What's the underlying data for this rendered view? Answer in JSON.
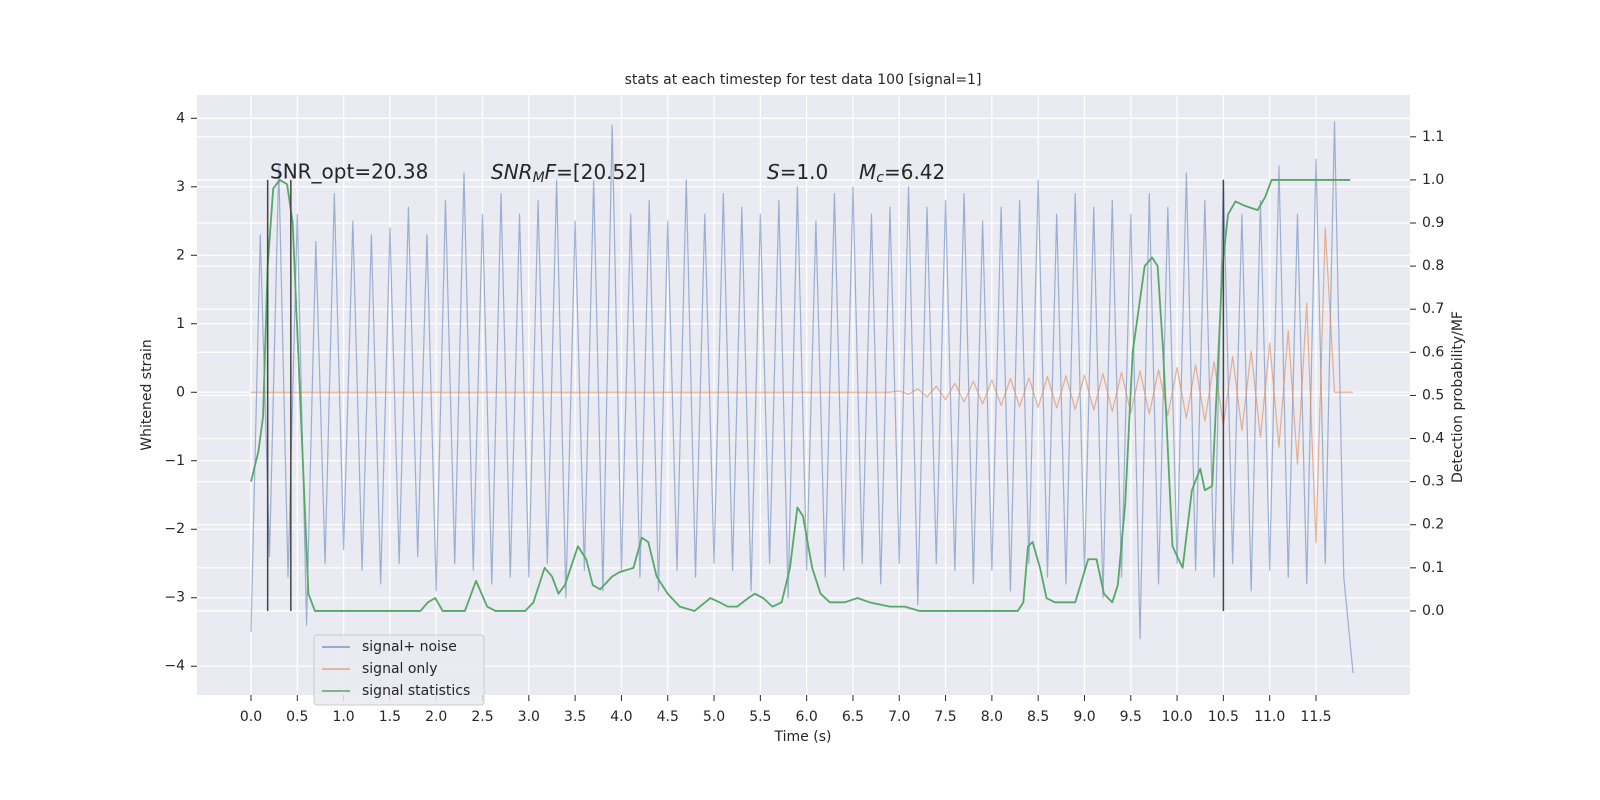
{
  "chart_data": {
    "type": "line",
    "title": "stats at each timestep for test data 100 [signal=1]",
    "xlabel": "Time (s)",
    "ylabel": "Whitened strain",
    "y2label": "Detection probability/MF",
    "annotations": [
      [
        "SNR_opt=20.38"
      ],
      [
        "SNR",
        "M",
        "F",
        "=[20.52]"
      ],
      [
        "S",
        "=1.0"
      ],
      [
        "M",
        "c",
        "=6.42"
      ]
    ],
    "xlim": [
      -0.583,
      12.515
    ],
    "ylim": [
      -4.42,
      4.34
    ],
    "y2lim": [
      -0.195,
      1.197
    ],
    "xticks": [
      {
        "value": 0,
        "label": "0.0"
      },
      0.5,
      {
        "value": 1,
        "label": "1.0"
      },
      1.5,
      {
        "value": 2,
        "label": "2.0"
      },
      2.5,
      {
        "value": 3,
        "label": "3.0"
      },
      3.5,
      {
        "value": 4,
        "label": "4.0"
      },
      4.5,
      {
        "value": 5,
        "label": "5.0"
      },
      5.5,
      {
        "value": 6,
        "label": "6.0"
      },
      6.5,
      {
        "value": 7,
        "label": "7.0"
      },
      7.5,
      {
        "value": 8,
        "label": "8.0"
      },
      8.5,
      {
        "value": 9,
        "label": "9.0"
      },
      9.5,
      {
        "value": 10,
        "label": "10.0"
      },
      10.5,
      {
        "value": 11,
        "label": "11.0"
      },
      11.5
    ],
    "yticks": [
      {
        "value": -4,
        "label": "−4"
      },
      {
        "value": -3,
        "label": "−3"
      },
      {
        "value": -2,
        "label": "−2"
      },
      {
        "value": -1,
        "label": "−1"
      },
      0,
      1,
      2,
      3,
      4
    ],
    "y2ticks": [
      {
        "value": 0,
        "label": "0.0"
      },
      0.1,
      0.2,
      0.3,
      0.4,
      0.5,
      0.6,
      0.7,
      0.8,
      0.9,
      {
        "value": 1,
        "label": "1.0"
      },
      1.1
    ],
    "grid": true,
    "legend": "lower left",
    "series": [
      {
        "name": "signal+ noise",
        "color": "#4c72b0",
        "x": [
          0,
          0.1,
          0.2,
          0.3,
          0.4,
          0.5,
          0.6,
          0.7,
          0.8,
          0.9,
          1,
          1.1,
          1.2,
          1.3,
          1.4,
          1.5,
          1.6,
          1.7,
          1.8,
          1.9,
          2,
          2.1,
          2.2,
          2.3,
          2.4,
          2.5,
          2.6,
          2.7,
          2.8,
          2.9,
          3,
          3.1,
          3.2,
          3.3,
          3.4,
          3.5,
          3.6,
          3.7,
          3.8,
          3.9,
          4,
          4.1,
          4.2,
          4.3,
          4.4,
          4.5,
          4.6,
          4.7,
          4.8,
          4.9,
          5,
          5.1,
          5.2,
          5.3,
          5.4,
          5.5,
          5.6,
          5.7,
          5.8,
          5.9,
          6,
          6.1,
          6.2,
          6.3,
          6.4,
          6.5,
          6.6,
          6.7,
          6.8,
          6.9,
          7,
          7.1,
          7.2,
          7.3,
          7.4,
          7.5,
          7.6,
          7.7,
          7.8,
          7.9,
          8,
          8.1,
          8.2,
          8.3,
          8.4,
          8.5,
          8.6,
          8.7,
          8.8,
          8.9,
          9,
          9.1,
          9.2,
          9.3,
          9.4,
          9.5,
          9.6,
          9.7,
          9.8,
          9.9,
          10,
          10.1,
          10.2,
          10.3,
          10.4,
          10.5,
          10.6,
          10.7,
          10.8,
          10.9,
          11,
          11.1,
          11.2,
          11.3,
          11.4,
          11.5,
          11.6,
          11.7,
          11.8,
          11.9
        ],
        "values": [
          -3.5,
          2.3,
          -2.4,
          3.3,
          -2.7,
          2.6,
          -3.4,
          2.2,
          -2.5,
          2.9,
          -2.3,
          2.5,
          -2.6,
          2.3,
          -2.8,
          2.4,
          -2.5,
          2.7,
          -2.4,
          2.3,
          -2.9,
          2.8,
          -2.5,
          3.2,
          -2.6,
          2.6,
          -2.8,
          2.9,
          -2.7,
          2.6,
          -2.7,
          2.8,
          -2.5,
          3.1,
          -3.0,
          2.5,
          -2.6,
          3.1,
          -2.9,
          3.9,
          -2.6,
          2.6,
          -2.7,
          2.8,
          -2.9,
          2.5,
          -2.6,
          3.1,
          -2.7,
          2.6,
          -2.5,
          2.9,
          -2.6,
          2.7,
          -2.9,
          2.6,
          -2.5,
          2.8,
          -3.0,
          3.0,
          -2.6,
          2.5,
          -2.7,
          2.9,
          -2.6,
          3.0,
          -2.5,
          2.6,
          -2.8,
          2.7,
          -2.5,
          3.0,
          -3.1,
          2.7,
          -2.5,
          2.8,
          -2.6,
          2.9,
          -2.8,
          2.5,
          -2.6,
          2.7,
          -2.9,
          2.8,
          -2.5,
          3.1,
          -2.7,
          2.6,
          -2.8,
          2.9,
          -2.6,
          2.7,
          -3.0,
          2.8,
          -2.7,
          2.6,
          -3.6,
          2.9,
          -2.8,
          2.7,
          -2.5,
          3.2,
          -2.6,
          2.8,
          -2.7,
          3.1,
          -2.5,
          2.6,
          -2.9,
          2.8,
          -2.6,
          3.3,
          -2.7,
          2.6,
          -2.8,
          3.4,
          -2.5,
          3.95,
          -2.7,
          -4.1
        ]
      },
      {
        "name": "signal only",
        "color": "#dd8452",
        "x": [
          0,
          0.1,
          0.2,
          0.3,
          0.4,
          0.5,
          0.6,
          0.7,
          0.8,
          0.9,
          1,
          1.1,
          1.2,
          1.3,
          1.4,
          1.5,
          1.6,
          1.7,
          1.8,
          1.9,
          2,
          2.1,
          2.2,
          2.3,
          2.4,
          2.5,
          2.6,
          2.7,
          2.8,
          2.9,
          3,
          3.1,
          3.2,
          3.3,
          3.4,
          3.5,
          3.6,
          3.7,
          3.8,
          3.9,
          4,
          4.1,
          4.2,
          4.3,
          4.4,
          4.5,
          4.6,
          4.7,
          4.8,
          4.9,
          5,
          5.1,
          5.2,
          5.3,
          5.4,
          5.5,
          5.6,
          5.7,
          5.8,
          5.9,
          6,
          6.1,
          6.2,
          6.3,
          6.4,
          6.5,
          6.6,
          6.7,
          6.8,
          6.9,
          7,
          7.1,
          7.2,
          7.3,
          7.4,
          7.5,
          7.6,
          7.7,
          7.8,
          7.9,
          8,
          8.1,
          8.2,
          8.3,
          8.4,
          8.5,
          8.6,
          8.7,
          8.8,
          8.9,
          9,
          9.1,
          9.2,
          9.3,
          9.4,
          9.5,
          9.6,
          9.7,
          9.8,
          9.9,
          10,
          10.1,
          10.2,
          10.3,
          10.4,
          10.5,
          10.6,
          10.7,
          10.8,
          10.9,
          11,
          11.1,
          11.2,
          11.3,
          11.4,
          11.5,
          11.6,
          11.7,
          11.8,
          11.9
        ],
        "values": [
          0,
          0,
          0,
          0,
          0,
          0,
          0,
          0,
          0,
          0,
          0,
          0,
          0,
          0,
          0,
          0,
          0,
          0,
          0,
          0,
          0,
          0,
          0,
          0,
          0,
          0,
          0,
          0,
          0,
          0,
          0,
          0,
          0,
          0,
          0,
          0,
          0,
          0,
          0,
          0,
          0,
          0,
          0,
          0,
          0,
          0,
          0,
          0,
          0,
          0,
          0,
          0,
          0,
          0,
          0,
          0,
          0,
          0,
          0,
          0,
          0,
          0,
          0,
          0,
          0,
          0,
          0,
          0,
          0,
          0,
          0.02,
          -0.03,
          0.05,
          -0.07,
          0.09,
          -0.11,
          0.13,
          -0.14,
          0.16,
          -0.17,
          0.18,
          -0.19,
          0.2,
          -0.21,
          0.21,
          -0.22,
          0.23,
          -0.23,
          0.24,
          -0.25,
          0.25,
          -0.26,
          0.27,
          -0.28,
          0.29,
          -0.3,
          0.31,
          -0.32,
          0.33,
          -0.34,
          0.36,
          -0.38,
          0.4,
          -0.42,
          0.45,
          -0.48,
          0.52,
          -0.56,
          0.6,
          -0.66,
          0.72,
          -0.8,
          0.9,
          -1.05,
          1.3,
          -2.2,
          2.4,
          0,
          0,
          0
        ]
      },
      {
        "name": "signal statistics",
        "color": "#55a868",
        "axis": "y2",
        "x": [
          0,
          0.08,
          0.13,
          0.18,
          0.24,
          0.31,
          0.39,
          0.45,
          0.53,
          0.62,
          0.69,
          1.83,
          1.91,
          1.99,
          2.07,
          2.31,
          2.43,
          2.55,
          2.64,
          2.96,
          3.05,
          3.17,
          3.25,
          3.32,
          3.39,
          3.53,
          3.62,
          3.69,
          3.77,
          3.9,
          3.98,
          4.13,
          4.22,
          4.29,
          4.38,
          4.5,
          4.63,
          4.79,
          4.96,
          5.06,
          5.15,
          5.25,
          5.37,
          5.44,
          5.53,
          5.63,
          5.73,
          5.82,
          5.9,
          5.96,
          6.06,
          6.15,
          6.25,
          6.41,
          6.55,
          6.68,
          6.9,
          7.06,
          7.22,
          8.09,
          8.28,
          8.34,
          8.39,
          8.44,
          8.52,
          8.59,
          8.68,
          8.9,
          9.04,
          9.13,
          9.21,
          9.3,
          9.36,
          9.44,
          9.52,
          9.65,
          9.73,
          9.79,
          9.85,
          9.95,
          10.06,
          10.16,
          10.25,
          10.3,
          10.38,
          10.49,
          10.55,
          10.63,
          10.73,
          10.87,
          10.95,
          11.02,
          11.17,
          11.87
        ],
        "values": [
          0.3,
          0.37,
          0.45,
          0.8,
          0.98,
          1.0,
          0.99,
          0.9,
          0.5,
          0.04,
          0,
          0,
          0.02,
          0.03,
          0,
          0,
          0.07,
          0.01,
          0,
          0,
          0.02,
          0.1,
          0.08,
          0.04,
          0.06,
          0.15,
          0.12,
          0.06,
          0.05,
          0.08,
          0.09,
          0.1,
          0.17,
          0.16,
          0.08,
          0.04,
          0.01,
          0,
          0.03,
          0.02,
          0.01,
          0.01,
          0.03,
          0.04,
          0.03,
          0.01,
          0.02,
          0.1,
          0.24,
          0.22,
          0.1,
          0.04,
          0.02,
          0.02,
          0.03,
          0.02,
          0.01,
          0.01,
          0,
          0,
          0,
          0.02,
          0.15,
          0.16,
          0.1,
          0.03,
          0.02,
          0.02,
          0.12,
          0.12,
          0.04,
          0.02,
          0.06,
          0.25,
          0.6,
          0.8,
          0.82,
          0.8,
          0.6,
          0.15,
          0.1,
          0.28,
          0.33,
          0.28,
          0.29,
          0.8,
          0.92,
          0.95,
          0.94,
          0.93,
          0.96,
          1.0,
          1.0,
          1.0
        ]
      }
    ],
    "vlines": {
      "x": [
        0.18,
        0.43,
        10.5
      ],
      "ymin": 0,
      "ymax": 1,
      "color": "#444444"
    }
  }
}
